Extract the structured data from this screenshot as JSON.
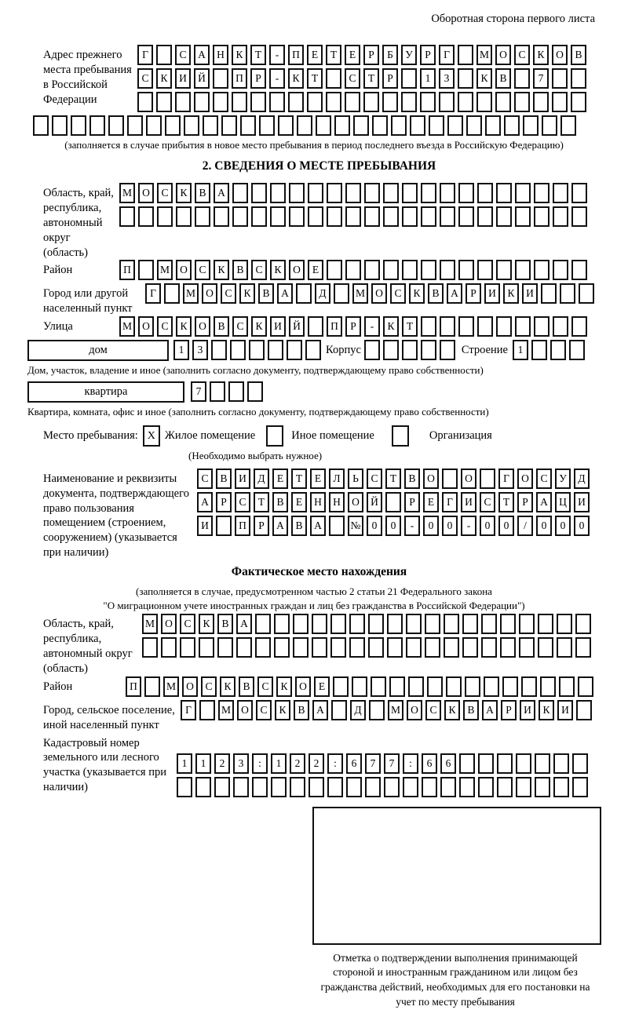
{
  "header_note": "Оборотная сторона первого листа",
  "prev": {
    "label": "Адрес прежнего места пребывания в Российской Федерации",
    "rows": [
      "Г САНКТ-ПЕТЕРБУРГ МОСКОВ",
      "СКИЙ ПР-КТ СТР 13 КВ 7  ",
      "                        "
    ],
    "row_full": "                             ",
    "note": "(заполняется в случае прибытия в новое место пребывания в период последнего въезда в Российскую Федерацию)"
  },
  "section2": {
    "title": "2. СВЕДЕНИЯ О МЕСТЕ ПРЕБЫВАНИЯ",
    "region_label": "Область, край, республика, автономный округ (область)",
    "region_rows": [
      "МОСКВА                   ",
      "                         "
    ],
    "district_label": "Район",
    "district_row": "П МОСКВСКОЕ              ",
    "city_label": "Город или другой населенный пункт",
    "city_row": "Г МОСКВА Д МОСКВАРИКИ   ",
    "street_label": "Улица",
    "street_row": "МОСКОВСКИЙ ПР-КТ         ",
    "house_label": "дом",
    "house_row": "13      ",
    "korpus_label": "Корпус",
    "korpus_row": "     ",
    "stroenie_label": "Строение",
    "stroenie_row": "1   ",
    "house_note": "Дом, участок, владение и иное (заполнить согласно документу, подтверждающему право собственности)",
    "flat_label": "квартира",
    "flat_row": "7   ",
    "flat_note": "Квартира, комната, офис и иное (заполнить согласно документу, подтверждающему право собственности)",
    "stay_label": "Место пребывания:",
    "stay_living_value": "X",
    "stay_living_label": "Жилое помещение",
    "stay_other_value": " ",
    "stay_other_label": "Иное помещение",
    "stay_org_value": " ",
    "stay_org_label": "Организация",
    "stay_note": "(Необходимо выбрать нужное)",
    "doc_label": "Наименование и реквизиты документа, подтверждающего право пользования помещением (строением, сооружением) (указывается при наличии)",
    "doc_rows": [
      "СВИДЕТЕЛЬСТВО О ГОСУД",
      "АРСТВЕННОЙ РЕГИСТРАЦИ",
      "И ПРАВА №00-00-00/000"
    ]
  },
  "fact": {
    "title": "Фактическое место нахождения",
    "note_line1": "(заполняется в случае, предусмотренном частью 2 статьи 21 Федерального закона",
    "note_line2": "\"О миграционном учете иностранных граждан и лиц без гражданства в Российской Федерации\")",
    "region_label": "Область, край, республика, автономный округ (область)",
    "region_rows": [
      "МОСКВА                  ",
      "                        "
    ],
    "district_label": "Район",
    "district_row": "П МОСКВСКОЕ              ",
    "city_label": "Город, сельское поселение, иной населенный пункт",
    "city_row": "Г МОСКВА Д МОСКВАРИКИ ",
    "kadastr_label": "Кадастровый номер земельного или лесного участка (указывается при наличии)",
    "kadastr_rows": [
      "1123:122:677:66       ",
      "                      "
    ]
  },
  "stamp_caption": "Отметка о подтверждении выполнения принимающей стороной и иностранным гражданином или лицом без гражданства действий, необходимых для его постановки на учет по месту пребывания"
}
